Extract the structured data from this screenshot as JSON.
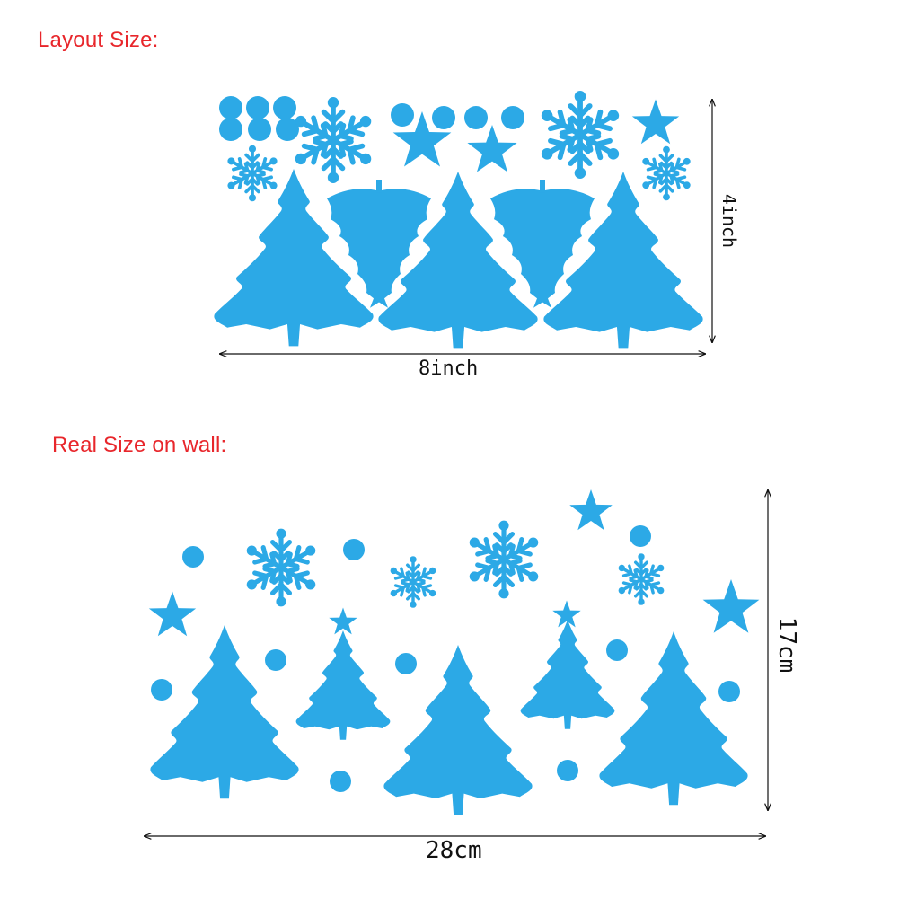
{
  "layout": {
    "title": "Layout Size:",
    "width_label": "8inch",
    "height_label": "4inch"
  },
  "real": {
    "title": "Real Size on wall:",
    "width_label": "28cm",
    "height_label": "17cm"
  },
  "colors": {
    "decal": "#2ca9e6",
    "title": "#e8262b",
    "dimension": "#111111"
  },
  "icons": [
    "tree-icon",
    "triangle-tree-icon",
    "snowflake-icon",
    "star-icon",
    "dot-icon"
  ]
}
